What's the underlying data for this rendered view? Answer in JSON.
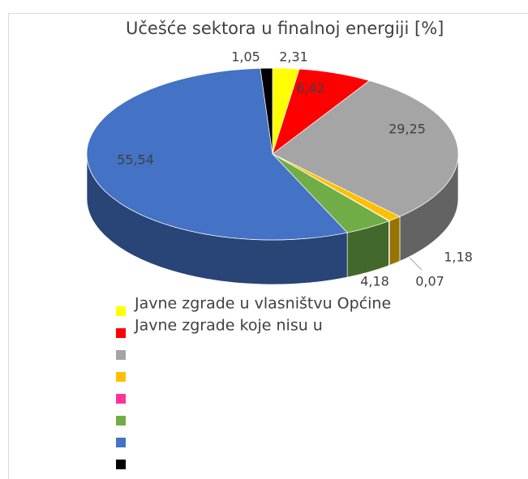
{
  "chart_data": {
    "type": "pie",
    "title": "Učešće sektora u finalnoj energiji [%]",
    "categories": [
      "Javne zgrade u vlasništvu Općine",
      "Javne zgrade koje nisu u",
      null,
      null,
      null,
      null,
      null,
      null
    ],
    "values": [
      2.31,
      6.42,
      29.25,
      1.18,
      0.07,
      4.18,
      55.54,
      1.05
    ],
    "value_labels": [
      "2,31",
      "6,42",
      "29,25",
      "1,18",
      "0,07",
      "4,18",
      "55,54",
      "1,05"
    ],
    "colors": [
      "#ffff00",
      "#ff0000",
      "#a5a5a5",
      "#ffc000",
      "#ff3399",
      "#70ad47",
      "#4472c4",
      "#000000"
    ]
  }
}
